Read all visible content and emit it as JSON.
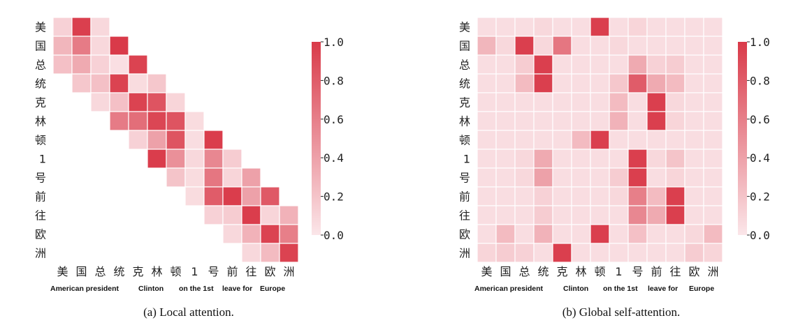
{
  "figure": {
    "colors": {
      "high": "#d93a49",
      "low": "#fbe6e9",
      "grid": "#ffffff"
    },
    "colorbar_ticks": [
      "1.0",
      "0.8",
      "0.6",
      "0.4",
      "0.2",
      "0.0"
    ]
  },
  "chart_data": [
    {
      "type": "heatmap",
      "caption": "(a) Local attention.",
      "rows": [
        "美",
        "国",
        "总",
        "统",
        "克",
        "林",
        "顿",
        "1",
        "号",
        "前",
        "往",
        "欧",
        "洲"
      ],
      "cols": [
        "美",
        "国",
        "总",
        "统",
        "克",
        "林",
        "顿",
        "1",
        "号",
        "前",
        "往",
        "欧",
        "洲"
      ],
      "gloss": [
        "American president",
        "Clinton",
        "on the 1st",
        "leave for",
        "Europe"
      ],
      "zlim": [
        0,
        1
      ],
      "values": [
        [
          0.12,
          0.97,
          0.08,
          null,
          null,
          null,
          null,
          null,
          null,
          null,
          null,
          null,
          null
        ],
        [
          0.28,
          0.62,
          0.08,
          1.0,
          null,
          null,
          null,
          null,
          null,
          null,
          null,
          null,
          null
        ],
        [
          0.22,
          0.35,
          0.12,
          0.04,
          0.95,
          null,
          null,
          null,
          null,
          null,
          null,
          null,
          null
        ],
        [
          null,
          0.18,
          0.22,
          0.95,
          0.06,
          0.18,
          null,
          null,
          null,
          null,
          null,
          null,
          null
        ],
        [
          null,
          null,
          0.08,
          0.22,
          0.95,
          0.85,
          0.1,
          null,
          null,
          null,
          null,
          null,
          null
        ],
        [
          null,
          null,
          null,
          0.62,
          0.7,
          0.93,
          0.85,
          0.06,
          null,
          null,
          null,
          null,
          null
        ],
        [
          null,
          null,
          null,
          null,
          0.12,
          0.4,
          0.85,
          0.05,
          0.98,
          null,
          null,
          null,
          null
        ],
        [
          null,
          null,
          null,
          null,
          null,
          0.98,
          0.5,
          0.08,
          0.55,
          0.15,
          null,
          null,
          null
        ],
        [
          null,
          null,
          null,
          null,
          null,
          null,
          0.2,
          0.06,
          0.65,
          0.1,
          0.4,
          null,
          null
        ],
        [
          null,
          null,
          null,
          null,
          null,
          null,
          null,
          0.06,
          0.8,
          0.98,
          0.4,
          0.82,
          null
        ],
        [
          null,
          null,
          null,
          null,
          null,
          null,
          null,
          null,
          0.12,
          0.15,
          0.98,
          0.1,
          0.3
        ],
        [
          null,
          null,
          null,
          null,
          null,
          null,
          null,
          null,
          null,
          0.08,
          0.3,
          0.95,
          0.6
        ],
        [
          null,
          null,
          null,
          null,
          null,
          null,
          null,
          null,
          null,
          null,
          0.08,
          0.25,
          0.95
        ]
      ]
    },
    {
      "type": "heatmap",
      "caption": "(b) Global self-attention.",
      "rows": [
        "美",
        "国",
        "总",
        "统",
        "克",
        "林",
        "顿",
        "1",
        "号",
        "前",
        "往",
        "欧",
        "洲"
      ],
      "cols": [
        "美",
        "国",
        "总",
        "统",
        "克",
        "林",
        "顿",
        "1",
        "号",
        "前",
        "往",
        "欧",
        "洲"
      ],
      "gloss": [
        "American president",
        "Clinton",
        "on the 1st",
        "leave for",
        "Europe"
      ],
      "zlim": [
        0,
        1
      ],
      "values": [
        [
          0.05,
          0.05,
          0.05,
          0.08,
          0.05,
          0.05,
          0.97,
          0.05,
          0.1,
          0.05,
          0.05,
          0.05,
          0.05
        ],
        [
          0.28,
          0.08,
          0.97,
          0.08,
          0.65,
          0.05,
          0.05,
          0.08,
          0.05,
          0.05,
          0.05,
          0.05,
          0.05
        ],
        [
          0.05,
          0.05,
          0.15,
          0.97,
          0.05,
          0.05,
          0.05,
          0.05,
          0.35,
          0.12,
          0.15,
          0.05,
          0.05
        ],
        [
          0.05,
          0.05,
          0.25,
          0.97,
          0.05,
          0.05,
          0.05,
          0.18,
          0.8,
          0.35,
          0.25,
          0.05,
          0.05
        ],
        [
          0.05,
          0.05,
          0.05,
          0.05,
          0.05,
          0.05,
          0.05,
          0.25,
          0.05,
          0.97,
          0.08,
          0.05,
          0.05
        ],
        [
          0.05,
          0.05,
          0.05,
          0.05,
          0.05,
          0.05,
          0.05,
          0.3,
          0.05,
          0.97,
          0.1,
          0.05,
          0.05
        ],
        [
          0.05,
          0.05,
          0.05,
          0.05,
          0.05,
          0.25,
          0.97,
          0.05,
          0.05,
          0.05,
          0.05,
          0.05,
          0.05
        ],
        [
          0.05,
          0.05,
          0.08,
          0.35,
          0.05,
          0.05,
          0.05,
          0.05,
          0.97,
          0.08,
          0.2,
          0.05,
          0.05
        ],
        [
          0.05,
          0.05,
          0.08,
          0.4,
          0.05,
          0.05,
          0.05,
          0.15,
          0.97,
          0.05,
          0.1,
          0.05,
          0.05
        ],
        [
          0.05,
          0.05,
          0.05,
          0.12,
          0.05,
          0.05,
          0.05,
          0.08,
          0.6,
          0.25,
          0.97,
          0.05,
          0.05
        ],
        [
          0.05,
          0.05,
          0.05,
          0.15,
          0.05,
          0.05,
          0.05,
          0.05,
          0.55,
          0.35,
          0.97,
          0.05,
          0.05
        ],
        [
          0.05,
          0.25,
          0.05,
          0.3,
          0.05,
          0.05,
          0.97,
          0.05,
          0.22,
          0.05,
          0.05,
          0.08,
          0.25
        ],
        [
          0.1,
          0.15,
          0.12,
          0.05,
          0.97,
          0.05,
          0.05,
          0.05,
          0.05,
          0.05,
          0.05,
          0.15,
          0.1
        ]
      ]
    }
  ]
}
